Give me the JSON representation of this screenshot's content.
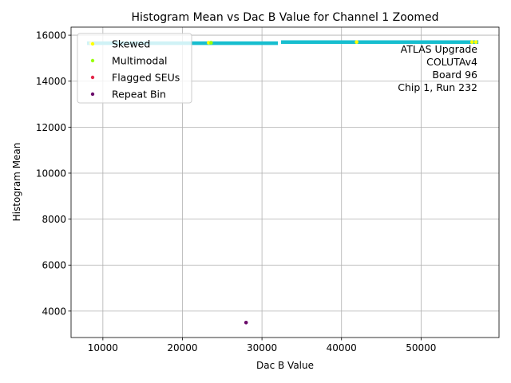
{
  "chart_data": {
    "type": "scatter",
    "title": "Histogram Mean vs Dac B Value for Channel 1 Zoomed",
    "xlabel": "Dac B Value",
    "ylabel": "Histogram Mean",
    "xlim": [
      6000,
      59800
    ],
    "ylim": [
      2850,
      16350
    ],
    "xticks": [
      10000,
      20000,
      30000,
      40000,
      50000
    ],
    "yticks": [
      4000,
      6000,
      8000,
      10000,
      12000,
      14000,
      16000
    ],
    "grid": true,
    "legend_position": "top-left",
    "annotation": [
      "ATLAS Upgrade",
      "COLUTAv4",
      "Board 96",
      "Chip 1, Run 232"
    ],
    "main_trace": {
      "color": "#17becf",
      "segments": [
        {
          "x_start": 8000,
          "x_end": 32000,
          "y": 15650
        },
        {
          "x_start": 32400,
          "x_end": 57200,
          "y": 15700
        }
      ]
    },
    "series": [
      {
        "name": "Skewed",
        "color": "#ffff00",
        "points": [
          [
            8500,
            15650
          ],
          [
            23300,
            15670
          ],
          [
            41900,
            15700
          ],
          [
            56400,
            15700
          ],
          [
            56900,
            15700
          ]
        ]
      },
      {
        "name": "Multimodal",
        "color": "#99ff00",
        "points": [
          [
            23600,
            15670
          ]
        ]
      },
      {
        "name": "Flagged SEUs",
        "color": "#e3284a",
        "points": []
      },
      {
        "name": "Repeat Bin",
        "color": "#6a0a6a",
        "points": [
          [
            28000,
            3500
          ]
        ]
      }
    ]
  }
}
